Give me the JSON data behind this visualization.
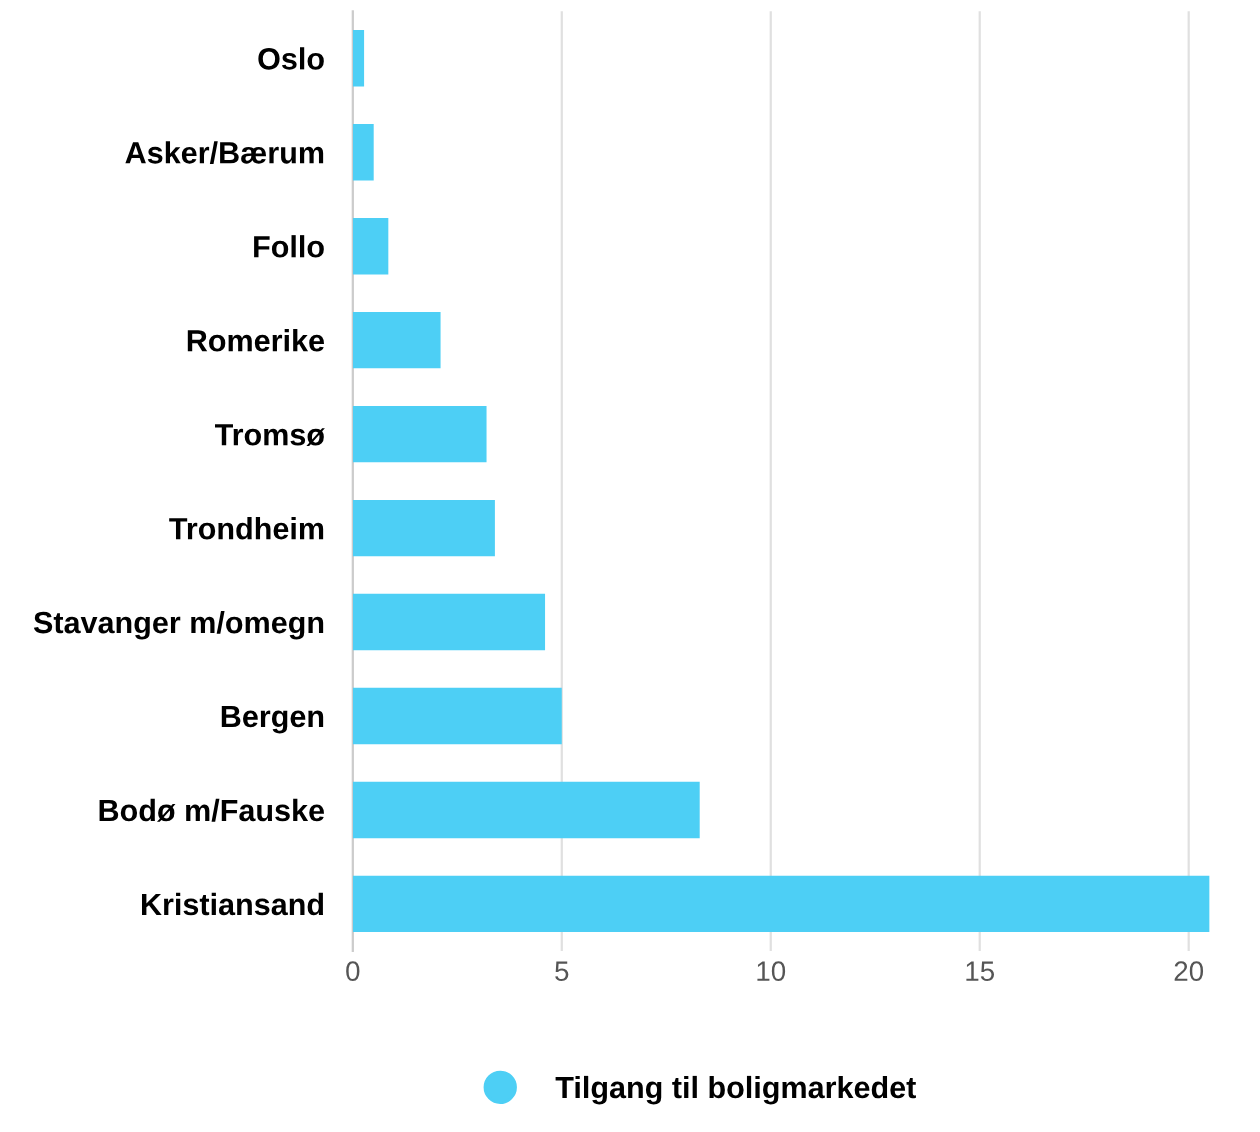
{
  "chart_data": {
    "type": "bar",
    "orientation": "horizontal",
    "categories": [
      "Oslo",
      "Asker/Bærum",
      "Follo",
      "Romerike",
      "Tromsø",
      "Trondheim",
      "Stavanger m/omegn",
      "Bergen",
      "Bodø m/Fauske",
      "Kristiansand"
    ],
    "series": [
      {
        "name": "Tilgang til boligmarkedet",
        "color": "#4dcff5",
        "values": [
          0.27,
          0.5,
          0.85,
          2.1,
          3.2,
          3.4,
          4.6,
          5.0,
          8.3,
          20.5
        ]
      }
    ],
    "xlim": [
      0,
      20.5
    ],
    "xticks": [
      0,
      5,
      10,
      15,
      20
    ],
    "grid": "x",
    "legend": "bottom"
  }
}
